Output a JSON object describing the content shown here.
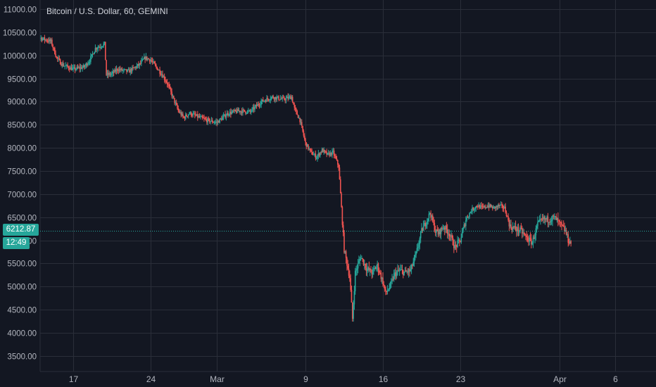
{
  "header": {
    "title": "Bitcoin / U.S. Dollar, 60, GEMINI"
  },
  "last_price": {
    "value": "6212.87",
    "countdown": "12:49"
  },
  "colors": {
    "background": "#131722",
    "grid": "#2a2e39",
    "axis_text": "#b2b5be",
    "up": "#26a69a",
    "down": "#ef5350",
    "price_line": "#26a69a"
  },
  "chart_data": {
    "type": "candlestick",
    "title": "Bitcoin / U.S. Dollar, 60, GEMINI",
    "y_axis": {
      "position": "left",
      "ylim": [
        3250,
        11100
      ],
      "ticks": [
        11000,
        10500,
        10000,
        9500,
        9000,
        8500,
        8000,
        7500,
        7000,
        6500,
        6000,
        5500,
        5000,
        4500,
        4000,
        3500
      ],
      "tick_labels": [
        "11000.00",
        "10500.00",
        "10000.00",
        "9500.00",
        "9000.00",
        "8500.00",
        "8000.00",
        "7500.00",
        "7000.00",
        "6500.00",
        "6000.00",
        "5500.00",
        "5000.00",
        "4500.00",
        "4000.00",
        "3500.00"
      ]
    },
    "x_axis": {
      "ticks": [
        {
          "label": "17",
          "date": "2020-02-17"
        },
        {
          "label": "24",
          "date": "2020-02-24"
        },
        {
          "label": "Mar",
          "date": "2020-03-01"
        },
        {
          "label": "9",
          "date": "2020-03-09"
        },
        {
          "label": "16",
          "date": "2020-03-16"
        },
        {
          "label": "23",
          "date": "2020-03-23"
        },
        {
          "label": "Apr",
          "date": "2020-04-01"
        },
        {
          "label": "6",
          "date": "2020-04-06"
        }
      ],
      "xlim": [
        "2020-02-13",
        "2020-04-09"
      ]
    },
    "grid": true,
    "price_line": 6212.87,
    "series": [
      {
        "path": [
          [
            "2020-02-13",
            10250
          ],
          [
            "2020-02-14",
            10380
          ],
          [
            "2020-02-15",
            10300
          ],
          [
            "2020-02-15T12",
            9950
          ],
          [
            "2020-02-16",
            9800
          ],
          [
            "2020-02-17",
            9700
          ],
          [
            "2020-02-18",
            9750
          ],
          [
            "2020-02-18T12",
            9900
          ],
          [
            "2020-02-19",
            10150
          ],
          [
            "2020-02-19T20",
            10250
          ],
          [
            "2020-02-20",
            9580
          ],
          [
            "2020-02-20T12",
            9600
          ],
          [
            "2020-02-21",
            9700
          ],
          [
            "2020-02-22",
            9650
          ],
          [
            "2020-02-23",
            9800
          ],
          [
            "2020-02-23T12",
            9950
          ],
          [
            "2020-02-24",
            9900
          ],
          [
            "2020-02-24T12",
            9750
          ],
          [
            "2020-02-25",
            9600
          ],
          [
            "2020-02-25T12",
            9400
          ],
          [
            "2020-02-26",
            9100
          ],
          [
            "2020-02-26T12",
            8800
          ],
          [
            "2020-02-27",
            8650
          ],
          [
            "2020-02-27T12",
            8750
          ],
          [
            "2020-02-28",
            8700
          ],
          [
            "2020-02-29",
            8600
          ],
          [
            "2020-03-01",
            8550
          ],
          [
            "2020-03-02",
            8750
          ],
          [
            "2020-03-03",
            8800
          ],
          [
            "2020-03-04",
            8780
          ],
          [
            "2020-03-05",
            9000
          ],
          [
            "2020-03-06",
            9100
          ],
          [
            "2020-03-07",
            9050
          ],
          [
            "2020-03-07T18",
            9100
          ],
          [
            "2020-03-08",
            8850
          ],
          [
            "2020-03-08T12",
            8600
          ],
          [
            "2020-03-09",
            8100
          ],
          [
            "2020-03-09T12",
            7900
          ],
          [
            "2020-03-10",
            7800
          ],
          [
            "2020-03-10T12",
            7950
          ],
          [
            "2020-03-11",
            7850
          ],
          [
            "2020-03-11T12",
            7900
          ],
          [
            "2020-03-12",
            7600
          ],
          [
            "2020-03-12T12",
            5800
          ],
          [
            "2020-03-13",
            5200
          ],
          [
            "2020-03-13T06",
            4300
          ],
          [
            "2020-03-13T12",
            5300
          ],
          [
            "2020-03-14",
            5650
          ],
          [
            "2020-03-14T12",
            5400
          ],
          [
            "2020-03-15",
            5300
          ],
          [
            "2020-03-15T12",
            5450
          ],
          [
            "2020-03-16",
            5100
          ],
          [
            "2020-03-16T06",
            4850
          ],
          [
            "2020-03-16T18",
            5050
          ],
          [
            "2020-03-17",
            5250
          ],
          [
            "2020-03-17T12",
            5350
          ],
          [
            "2020-03-18",
            5300
          ],
          [
            "2020-03-18T12",
            5350
          ],
          [
            "2020-03-19",
            5700
          ],
          [
            "2020-03-19T12",
            6200
          ],
          [
            "2020-03-20",
            6450
          ],
          [
            "2020-03-20T06",
            6600
          ],
          [
            "2020-03-20T18",
            6200
          ],
          [
            "2020-03-21",
            6150
          ],
          [
            "2020-03-21T12",
            6300
          ],
          [
            "2020-03-22",
            6150
          ],
          [
            "2020-03-22T12",
            5850
          ],
          [
            "2020-03-23",
            6000
          ],
          [
            "2020-03-23T12",
            6450
          ],
          [
            "2020-03-24",
            6650
          ],
          [
            "2020-03-24T12",
            6750
          ],
          [
            "2020-03-25",
            6700
          ],
          [
            "2020-03-25T12",
            6750
          ],
          [
            "2020-03-26",
            6700
          ],
          [
            "2020-03-26T12",
            6750
          ],
          [
            "2020-03-27",
            6700
          ],
          [
            "2020-03-27T12",
            6300
          ],
          [
            "2020-03-28",
            6250
          ],
          [
            "2020-03-28T12",
            6200
          ],
          [
            "2020-03-29",
            6050
          ],
          [
            "2020-03-29T12",
            5950
          ],
          [
            "2020-03-30",
            6350
          ],
          [
            "2020-03-30T12",
            6450
          ],
          [
            "2020-03-31",
            6450
          ],
          [
            "2020-03-31T12",
            6500
          ],
          [
            "2020-04-01",
            6350
          ],
          [
            "2020-04-01T12",
            6200
          ],
          [
            "2020-04-01T18",
            6000
          ],
          [
            "2020-04-02",
            5950
          ]
        ]
      }
    ]
  }
}
